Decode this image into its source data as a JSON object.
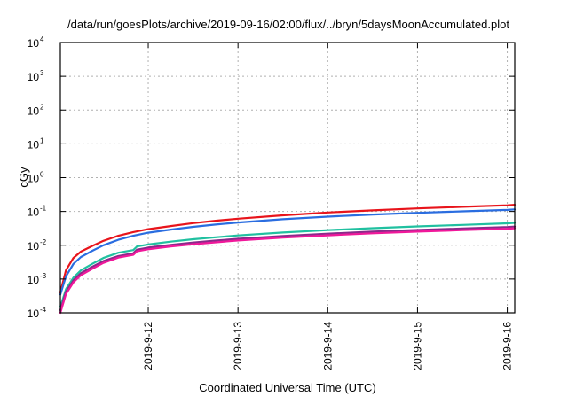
{
  "chart_data": {
    "type": "line",
    "title": "/data/run/goesPlots/archive/2019-09-16/02:00/flux/../bryn/5daysMoonAccumulated.plot",
    "xlabel": "Coordinated Universal Time (UTC)",
    "ylabel": "cGy",
    "y_scale": "log",
    "ylim": [
      0.0001,
      10000
    ],
    "y_ticks": [
      {
        "value": 0.0001,
        "base": "10",
        "exp": "-4"
      },
      {
        "value": 0.001,
        "base": "10",
        "exp": "-3"
      },
      {
        "value": 0.01,
        "base": "10",
        "exp": "-2"
      },
      {
        "value": 0.1,
        "base": "10",
        "exp": "-1"
      },
      {
        "value": 1,
        "base": "10",
        "exp": "0"
      },
      {
        "value": 10,
        "base": "10",
        "exp": "1"
      },
      {
        "value": 100,
        "base": "10",
        "exp": "2"
      },
      {
        "value": 1000,
        "base": "10",
        "exp": "3"
      },
      {
        "value": 10000,
        "base": "10",
        "exp": "4"
      }
    ],
    "xlim": [
      "2019-09-11 00:30",
      "2019-09-16 02:00"
    ],
    "x_ticks": [
      "2019-9-12",
      "2019-9-13",
      "2019-9-14",
      "2019-9-15",
      "2019-9-16"
    ],
    "grid": true,
    "legend": "none",
    "series": [
      {
        "color": "#e8141b",
        "x": [
          "2019-09-11 00:30",
          "2019-09-11 02:00",
          "2019-09-11 04:00",
          "2019-09-11 06:00",
          "2019-09-11 09:00",
          "2019-09-11 12:00",
          "2019-09-11 16:00",
          "2019-09-11 20:00",
          "2019-09-12 00:00",
          "2019-09-12 06:00",
          "2019-09-12 12:00",
          "2019-09-12 18:00",
          "2019-09-13 00:00",
          "2019-09-13 12:00",
          "2019-09-14 00:00",
          "2019-09-14 12:00",
          "2019-09-15 00:00",
          "2019-09-15 12:00",
          "2019-09-16 00:00",
          "2019-09-16 02:00"
        ],
        "y": [
          0.0004,
          0.0018,
          0.0042,
          0.0065,
          0.0095,
          0.0135,
          0.019,
          0.0245,
          0.03,
          0.037,
          0.045,
          0.053,
          0.061,
          0.077,
          0.093,
          0.108,
          0.123,
          0.137,
          0.152,
          0.158
        ]
      },
      {
        "color": "#2a6de0",
        "x": [
          "2019-09-11 00:30",
          "2019-09-11 02:00",
          "2019-09-11 04:00",
          "2019-09-11 06:00",
          "2019-09-11 09:00",
          "2019-09-11 12:00",
          "2019-09-11 16:00",
          "2019-09-11 20:00",
          "2019-09-12 00:00",
          "2019-09-12 06:00",
          "2019-09-12 12:00",
          "2019-09-12 18:00",
          "2019-09-13 00:00",
          "2019-09-13 12:00",
          "2019-09-14 00:00",
          "2019-09-14 12:00",
          "2019-09-15 00:00",
          "2019-09-15 12:00",
          "2019-09-16 00:00",
          "2019-09-16 02:00"
        ],
        "y": [
          0.00035,
          0.0012,
          0.0028,
          0.0045,
          0.0068,
          0.01,
          0.0145,
          0.019,
          0.0235,
          0.029,
          0.035,
          0.041,
          0.047,
          0.059,
          0.07,
          0.081,
          0.091,
          0.101,
          0.111,
          0.115
        ]
      },
      {
        "color": "#20c0a0",
        "x": [
          "2019-09-11 00:30",
          "2019-09-11 02:00",
          "2019-09-11 04:00",
          "2019-09-11 06:00",
          "2019-09-11 09:00",
          "2019-09-11 12:00",
          "2019-09-11 16:00",
          "2019-09-11 20:00",
          "2019-09-11 21:00",
          "2019-09-12 00:00",
          "2019-09-12 06:00",
          "2019-09-12 12:00",
          "2019-09-12 18:00",
          "2019-09-13 00:00",
          "2019-09-13 12:00",
          "2019-09-14 00:00",
          "2019-09-14 12:00",
          "2019-09-15 00:00",
          "2019-09-15 12:00",
          "2019-09-16 00:00",
          "2019-09-16 02:00"
        ],
        "y": [
          0.00015,
          0.0005,
          0.0011,
          0.0018,
          0.0028,
          0.0042,
          0.006,
          0.0072,
          0.0092,
          0.0105,
          0.0128,
          0.015,
          0.0172,
          0.0195,
          0.0238,
          0.028,
          0.032,
          0.036,
          0.04,
          0.0445,
          0.046
        ]
      },
      {
        "color": "#8a2a8a",
        "x": [
          "2019-09-11 00:30",
          "2019-09-11 02:00",
          "2019-09-11 04:00",
          "2019-09-11 06:00",
          "2019-09-11 09:00",
          "2019-09-11 12:00",
          "2019-09-11 16:00",
          "2019-09-11 20:00",
          "2019-09-11 21:00",
          "2019-09-12 00:00",
          "2019-09-12 06:00",
          "2019-09-12 12:00",
          "2019-09-12 18:00",
          "2019-09-13 00:00",
          "2019-09-13 12:00",
          "2019-09-14 00:00",
          "2019-09-14 12:00",
          "2019-09-15 00:00",
          "2019-09-15 12:00",
          "2019-09-16 00:00",
          "2019-09-16 02:00"
        ],
        "y": [
          0.00012,
          0.00042,
          0.00092,
          0.0015,
          0.0023,
          0.0034,
          0.0048,
          0.0058,
          0.0074,
          0.0085,
          0.0103,
          0.012,
          0.0137,
          0.0155,
          0.0188,
          0.022,
          0.0252,
          0.0283,
          0.0313,
          0.0345,
          0.0357
        ]
      },
      {
        "color": "#f0189a",
        "x": [
          "2019-09-11 00:30",
          "2019-09-11 02:00",
          "2019-09-11 04:00",
          "2019-09-11 06:00",
          "2019-09-11 09:00",
          "2019-09-11 12:00",
          "2019-09-11 16:00",
          "2019-09-11 20:00",
          "2019-09-11 21:00",
          "2019-09-12 00:00",
          "2019-09-12 06:00",
          "2019-09-12 12:00",
          "2019-09-12 18:00",
          "2019-09-13 00:00",
          "2019-09-13 12:00",
          "2019-09-14 00:00",
          "2019-09-14 12:00",
          "2019-09-15 00:00",
          "2019-09-15 12:00",
          "2019-09-16 00:00",
          "2019-09-16 02:00"
        ],
        "y": [
          0.0001,
          0.00036,
          0.0008,
          0.0013,
          0.002,
          0.003,
          0.0043,
          0.0052,
          0.0066,
          0.0076,
          0.0092,
          0.0107,
          0.0122,
          0.0138,
          0.0168,
          0.0196,
          0.0225,
          0.0253,
          0.028,
          0.0308,
          0.0318
        ]
      }
    ]
  }
}
